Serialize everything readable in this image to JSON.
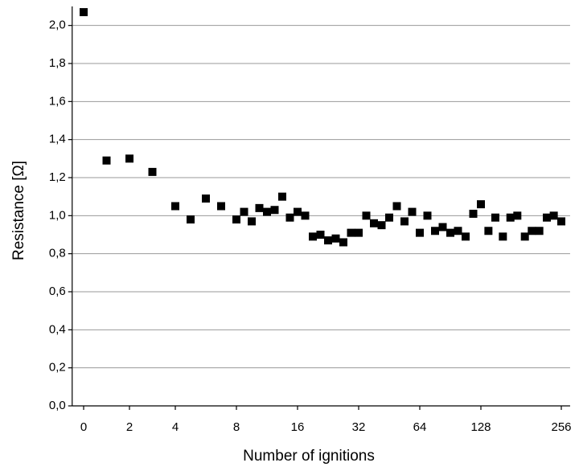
{
  "chart_data": {
    "type": "scatter",
    "x_label": "Number of ignitions",
    "y_label": "Resistance [Ω]",
    "series": [
      {
        "name": "Resistance",
        "color": "#000000",
        "x": [
          0,
          1,
          2,
          3,
          4,
          5,
          6,
          7,
          8,
          9,
          10,
          11,
          12,
          13,
          14,
          15,
          16,
          18,
          20,
          22,
          24,
          26,
          28,
          30,
          32,
          36,
          40,
          44,
          48,
          52,
          56,
          60,
          64,
          72,
          80,
          88,
          96,
          104,
          112,
          120,
          128,
          140,
          151,
          163,
          175,
          186,
          198,
          209,
          221,
          233,
          244,
          256
        ],
        "values": [
          2.07,
          1.29,
          1.3,
          1.23,
          1.05,
          0.98,
          1.09,
          1.05,
          0.98,
          1.02,
          0.97,
          1.04,
          1.02,
          1.03,
          1.1,
          0.99,
          1.02,
          1.0,
          0.89,
          0.9,
          0.87,
          0.88,
          0.86,
          0.91,
          0.91,
          1.0,
          0.96,
          0.95,
          0.99,
          1.05,
          0.97,
          1.02,
          0.91,
          1.0,
          0.92,
          0.94,
          0.91,
          0.92,
          0.89,
          1.01,
          1.06,
          0.92,
          0.99,
          0.89,
          0.99,
          1.0,
          0.89,
          0.92,
          0.92,
          0.99,
          1.0,
          0.97
        ]
      }
    ],
    "xlim": [
      -0.5,
      270
    ],
    "xticks": [
      0,
      2,
      4,
      8,
      16,
      32,
      64,
      128,
      256
    ],
    "ylim": [
      0,
      2.1
    ],
    "yticks": [
      {
        "value": 0,
        "label": "0,0"
      },
      {
        "value": 0.2,
        "label": "0,2"
      },
      {
        "value": 0.4,
        "label": "0,4"
      },
      {
        "value": 0.6,
        "label": "0,6"
      },
      {
        "value": 0.8,
        "label": "0,8"
      },
      {
        "value": 1.0,
        "label": "1,0"
      },
      {
        "value": 1.2,
        "label": "1,2"
      },
      {
        "value": 1.4,
        "label": "1,4"
      },
      {
        "value": 1.6,
        "label": "1,6"
      },
      {
        "value": 1.8,
        "label": "1,8"
      },
      {
        "value": 2.0,
        "label": "2,0"
      }
    ],
    "grid": true
  }
}
